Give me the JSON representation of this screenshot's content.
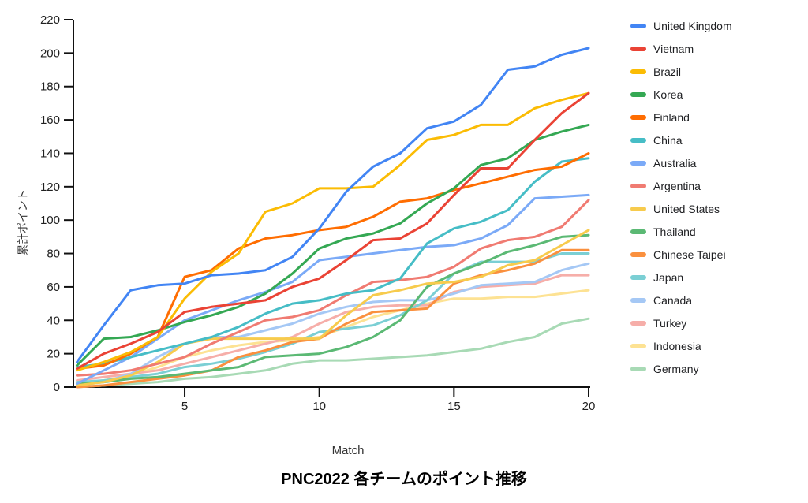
{
  "title": "PNC2022 各チームのポイント推移",
  "chart_data": {
    "type": "line",
    "title": "PNC2022 各チームのポイント推移",
    "xlabel": "Match",
    "ylabel": "累計ポイント",
    "xlim": [
      1,
      20
    ],
    "ylim": [
      0,
      220
    ],
    "x_ticks": [
      5,
      10,
      15,
      20
    ],
    "y_ticks": [
      0,
      20,
      40,
      60,
      80,
      100,
      120,
      140,
      160,
      180,
      200,
      220
    ],
    "grid": false,
    "legend_position": "right",
    "x": [
      1,
      2,
      3,
      4,
      5,
      6,
      7,
      8,
      9,
      10,
      11,
      12,
      13,
      14,
      15,
      16,
      17,
      18,
      19,
      20
    ],
    "series": [
      {
        "name": "United Kingdom",
        "color": "#4285F4",
        "values": [
          15,
          37,
          58,
          61,
          62,
          67,
          68,
          70,
          78,
          95,
          117,
          132,
          140,
          155,
          159,
          169,
          190,
          192,
          199,
          203
        ]
      },
      {
        "name": "Vietnam",
        "color": "#EA4335",
        "values": [
          11,
          20,
          26,
          33,
          45,
          48,
          50,
          52,
          60,
          65,
          76,
          88,
          89,
          98,
          115,
          131,
          131,
          148,
          164,
          176
        ]
      },
      {
        "name": "Brazil",
        "color": "#FBBC04",
        "values": [
          10,
          15,
          21,
          30,
          53,
          69,
          80,
          105,
          110,
          119,
          119,
          120,
          133,
          148,
          151,
          157,
          157,
          167,
          172,
          176
        ]
      },
      {
        "name": "Korea",
        "color": "#34A853",
        "values": [
          13,
          29,
          30,
          34,
          39,
          43,
          48,
          56,
          68,
          83,
          89,
          92,
          98,
          110,
          119,
          133,
          137,
          148,
          153,
          157
        ]
      },
      {
        "name": "Finland",
        "color": "#FF6D01",
        "values": [
          11,
          13,
          20,
          30,
          66,
          70,
          83,
          89,
          91,
          94,
          96,
          102,
          111,
          113,
          118,
          122,
          126,
          130,
          132,
          140
        ]
      },
      {
        "name": "China",
        "color": "#46BDC6",
        "values": [
          12,
          14,
          18,
          22,
          26,
          30,
          36,
          44,
          50,
          52,
          56,
          58,
          65,
          86,
          95,
          99,
          106,
          123,
          135,
          137
        ]
      },
      {
        "name": "Australia",
        "color": "#7BAAF7",
        "values": [
          2,
          10,
          18,
          29,
          40,
          46,
          52,
          57,
          63,
          76,
          78,
          80,
          82,
          84,
          85,
          89,
          97,
          113,
          114,
          115
        ]
      },
      {
        "name": "Argentina",
        "color": "#F07B72",
        "values": [
          7,
          8,
          10,
          14,
          18,
          26,
          33,
          40,
          42,
          46,
          55,
          63,
          64,
          66,
          72,
          83,
          88,
          90,
          96,
          112
        ]
      },
      {
        "name": "United States",
        "color": "#F7CB4D",
        "values": [
          1,
          3,
          7,
          15,
          26,
          29,
          29,
          29,
          29,
          29,
          43,
          55,
          58,
          62,
          63,
          66,
          73,
          76,
          85,
          94
        ]
      },
      {
        "name": "Thailand",
        "color": "#5BB974",
        "values": [
          2,
          3,
          5,
          6,
          8,
          10,
          12,
          18,
          19,
          20,
          24,
          30,
          40,
          60,
          68,
          74,
          81,
          85,
          90,
          91
        ]
      },
      {
        "name": "Chinese Taipei",
        "color": "#FA903E",
        "values": [
          0,
          1,
          3,
          5,
          7,
          10,
          18,
          22,
          27,
          29,
          38,
          45,
          46,
          47,
          62,
          67,
          70,
          74,
          82,
          82
        ]
      },
      {
        "name": "Japan",
        "color": "#7BCFD4",
        "values": [
          3,
          4,
          6,
          8,
          12,
          14,
          17,
          21,
          26,
          33,
          35,
          37,
          43,
          52,
          68,
          75,
          75,
          75,
          80,
          80
        ]
      },
      {
        "name": "Canada",
        "color": "#A5C8F5",
        "values": [
          1,
          3,
          8,
          18,
          26,
          30,
          30,
          34,
          38,
          44,
          48,
          51,
          52,
          52,
          56,
          61,
          62,
          63,
          70,
          74
        ]
      },
      {
        "name": "Turkey",
        "color": "#F6AEA9",
        "values": [
          4,
          6,
          8,
          10,
          14,
          18,
          22,
          26,
          30,
          38,
          45,
          48,
          49,
          49,
          57,
          60,
          61,
          62,
          67,
          67
        ]
      },
      {
        "name": "Indonesia",
        "color": "#FDE293",
        "values": [
          2,
          4,
          7,
          12,
          18,
          22,
          25,
          27,
          28,
          30,
          36,
          42,
          46,
          50,
          53,
          53,
          54,
          54,
          56,
          58
        ]
      },
      {
        "name": "Germany",
        "color": "#A8DAB5",
        "values": [
          0,
          1,
          2,
          3,
          5,
          6,
          8,
          10,
          14,
          16,
          16,
          17,
          18,
          19,
          21,
          23,
          27,
          30,
          38,
          41
        ]
      }
    ]
  }
}
